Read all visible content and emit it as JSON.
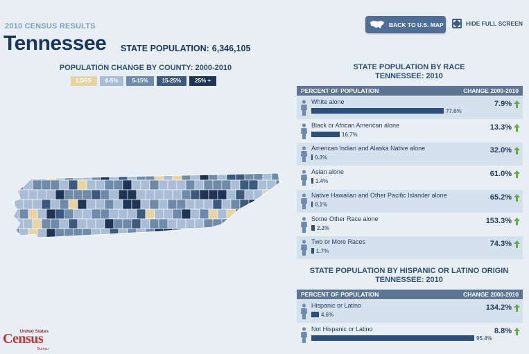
{
  "header": {
    "kicker": "2010 CENSUS RESULTS",
    "state_name": "Tennessee",
    "population_label": "STATE POPULATION:",
    "population_value": "6,346,105"
  },
  "toolbar": {
    "back_label": "BACK TO U.S. MAP",
    "hide_label": "HIDE FULL SCREEN"
  },
  "map": {
    "title": "POPULATION CHANGE BY COUNTY: 2000-2010",
    "legend": [
      {
        "label": "LOSS",
        "color": "#e8d3a2"
      },
      {
        "label": "0-5%",
        "color": "#a9bed6"
      },
      {
        "label": "5-15%",
        "color": "#6f8ba9"
      },
      {
        "label": "15-25%",
        "color": "#3c5a7e"
      },
      {
        "label": "25% +",
        "color": "#1e3556"
      }
    ]
  },
  "race": {
    "title": "STATE POPULATION BY RACE",
    "subtitle": "TENNESSEE: 2010",
    "col_left": "PERCENT OF POPULATION",
    "col_right": "CHANGE 2000-2010",
    "rows": [
      {
        "label": "White alone",
        "pct": "77.6%",
        "share": 0.776,
        "change": "7.9%"
      },
      {
        "label": "Black or African American alone",
        "pct": "16.7%",
        "share": 0.167,
        "change": "13.3%"
      },
      {
        "label": "American Indian and Alaska Native alone",
        "pct": "0.3%",
        "share": 0.003,
        "change": "32.0%"
      },
      {
        "label": "Asian alone",
        "pct": "1.4%",
        "share": 0.014,
        "change": "61.0%"
      },
      {
        "label": "Native Hawaiian and Other Pacific Islander alone",
        "pct": "0.1%",
        "share": 0.001,
        "change": "65.2%"
      },
      {
        "label": "Some Other Race alone",
        "pct": "2.2%",
        "share": 0.022,
        "change": "153.3%"
      },
      {
        "label": "Two or More Races",
        "pct": "1.7%",
        "share": 0.017,
        "change": "74.3%"
      }
    ]
  },
  "hispanic": {
    "title": "STATE POPULATION BY HISPANIC OR LATINO ORIGIN",
    "subtitle": "TENNESSEE: 2010",
    "col_left": "PERCENT OF POPULATION",
    "col_right": "CHANGE 2000-2010",
    "rows": [
      {
        "label": "Hispanic or Latino",
        "pct": "4.6%",
        "share": 0.046,
        "change": "134.2%"
      },
      {
        "label": "Not Hispanic or Latino",
        "pct": "95.4%",
        "share": 0.954,
        "change": "8.8%"
      }
    ]
  },
  "logo": {
    "line1": "United States",
    "word": "Census",
    "line3": "Bureau"
  },
  "colors": {
    "bar": "#2c4f79",
    "arrow": "#6aa84f",
    "header": "#5d7595"
  }
}
